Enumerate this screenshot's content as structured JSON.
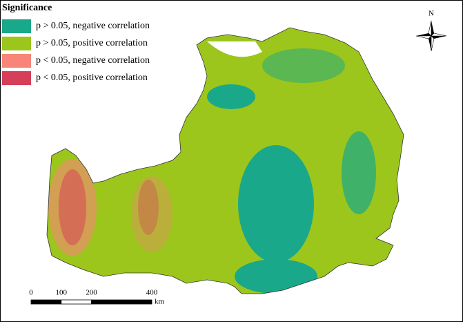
{
  "legend": {
    "title": "Significance",
    "items": [
      {
        "label": "p > 0.05, negative correlation",
        "color": "#1aa88a"
      },
      {
        "label": "p > 0.05, positive correlation",
        "color": "#9cc61b"
      },
      {
        "label": "p < 0.05, negative correlation",
        "color": "#f7857a"
      },
      {
        "label": "p < 0.05, positive correlation",
        "color": "#d53f5a"
      }
    ]
  },
  "north_label": "N",
  "scale_bar": {
    "ticks": [
      0,
      100,
      200,
      400
    ],
    "unit": "km"
  }
}
